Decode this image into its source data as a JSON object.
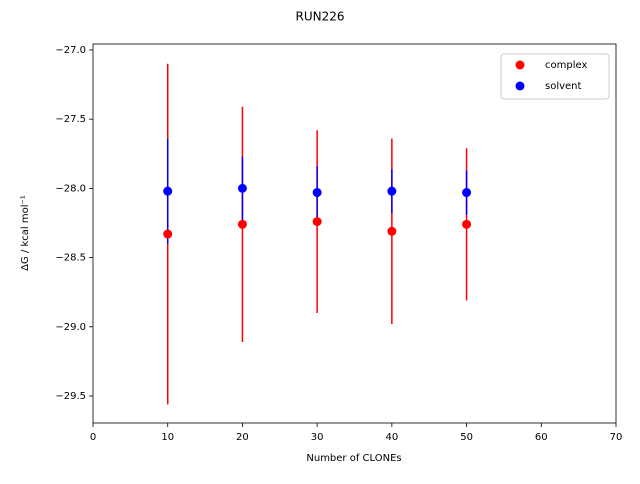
{
  "chart_data": {
    "type": "scatter",
    "title": "RUN226",
    "xlabel": "Number of CLONEs",
    "ylabel": "ΔG / kcal mol⁻¹",
    "xlim": [
      0,
      70
    ],
    "xticks": [
      0,
      10,
      20,
      30,
      40,
      50,
      60,
      70
    ],
    "ylim": [
      -29.695,
      -26.957
    ],
    "yticks": [
      {
        "value": -29.5,
        "label": "−29.5"
      },
      {
        "value": -29.0,
        "label": "−29.0"
      },
      {
        "value": -28.5,
        "label": "−28.5"
      },
      {
        "value": -28.0,
        "label": "−28.0"
      },
      {
        "value": -27.5,
        "label": "−27.5"
      },
      {
        "value": -27.0,
        "label": "−27.0"
      }
    ],
    "legend": "upper right",
    "series": [
      {
        "name": "complex",
        "color": "#ff0000",
        "x": [
          10,
          20,
          30,
          40,
          50
        ],
        "values": [
          -28.33,
          -28.26,
          -28.24,
          -28.31,
          -28.26
        ],
        "errors": [
          1.23,
          0.85,
          0.66,
          0.67,
          0.55
        ]
      },
      {
        "name": "solvent",
        "color": "#0000ff",
        "x": [
          10,
          20,
          30,
          40,
          50
        ],
        "values": [
          -28.02,
          -28.0,
          -28.03,
          -28.02,
          -28.03
        ],
        "errors": [
          0.38,
          0.23,
          0.19,
          0.16,
          0.16
        ]
      }
    ]
  }
}
